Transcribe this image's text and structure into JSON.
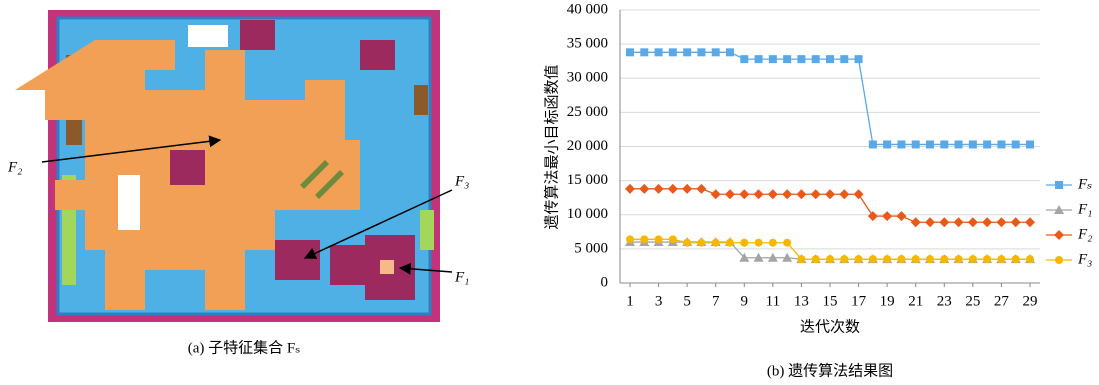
{
  "panel_a": {
    "caption": "(a) 子特征集合 Fₛ",
    "labels": [
      "F₂",
      "F₃",
      "F₁"
    ]
  },
  "chart_data": {
    "type": "line",
    "caption": "(b) 遗传算法结果图",
    "x_label": "迭代次数",
    "y_label": "遗传算法最小目标函数值",
    "x": [
      1,
      2,
      3,
      4,
      5,
      6,
      7,
      8,
      9,
      10,
      11,
      12,
      13,
      14,
      15,
      16,
      17,
      18,
      19,
      20,
      21,
      22,
      23,
      24,
      25,
      26,
      27,
      28,
      29
    ],
    "xlim": [
      0.3,
      29.7
    ],
    "xticks": [
      1,
      3,
      5,
      7,
      9,
      11,
      13,
      15,
      17,
      19,
      21,
      23,
      25,
      27,
      29
    ],
    "ylim": [
      0,
      40000
    ],
    "yticks": [
      0,
      {
        "value": 5000,
        "label": "5 000"
      },
      {
        "value": 10000,
        "label": "10 000"
      },
      {
        "value": 15000,
        "label": "15 000"
      },
      {
        "value": 20000,
        "label": "20 000"
      },
      {
        "value": 25000,
        "label": "25 000"
      },
      {
        "value": 30000,
        "label": "30 000"
      },
      {
        "value": 35000,
        "label": "35 000"
      },
      {
        "value": 40000,
        "label": "40 000"
      }
    ],
    "grid": true,
    "legend": "right",
    "series": [
      {
        "name": "Fₛ",
        "color": "#5aa9e6",
        "marker": "square",
        "values": [
          33800,
          33800,
          33800,
          33800,
          33800,
          33800,
          33800,
          33800,
          32800,
          32800,
          32800,
          32800,
          32800,
          32800,
          32800,
          32800,
          32800,
          20300,
          20300,
          20300,
          20300,
          20300,
          20300,
          20300,
          20300,
          20300,
          20300,
          20300,
          20300
        ]
      },
      {
        "name": "F₁",
        "color": "#a5a5a5",
        "marker": "triangle",
        "values": [
          6000,
          6000,
          6000,
          6000,
          6000,
          6000,
          6000,
          6000,
          3700,
          3700,
          3700,
          3700,
          3500,
          3500,
          3500,
          3500,
          3500,
          3500,
          3500,
          3500,
          3500,
          3500,
          3500,
          3500,
          3500,
          3500,
          3500,
          3500,
          3500
        ]
      },
      {
        "name": "F₂",
        "color": "#e8591a",
        "marker": "diamond",
        "values": [
          13800,
          13800,
          13800,
          13800,
          13800,
          13800,
          13000,
          13000,
          13000,
          13000,
          13000,
          13000,
          13000,
          13000,
          13000,
          13000,
          13000,
          9800,
          9800,
          9800,
          8900,
          8900,
          8900,
          8900,
          8900,
          8900,
          8900,
          8900,
          8900
        ]
      },
      {
        "name": "F₃",
        "color": "#f5b800",
        "marker": "circle",
        "values": [
          6400,
          6400,
          6400,
          6400,
          5900,
          5900,
          5900,
          5900,
          5900,
          5900,
          5900,
          5900,
          3500,
          3500,
          3500,
          3500,
          3500,
          3500,
          3500,
          3500,
          3500,
          3500,
          3500,
          3500,
          3500,
          3500,
          3500,
          3500,
          3500
        ]
      }
    ]
  }
}
